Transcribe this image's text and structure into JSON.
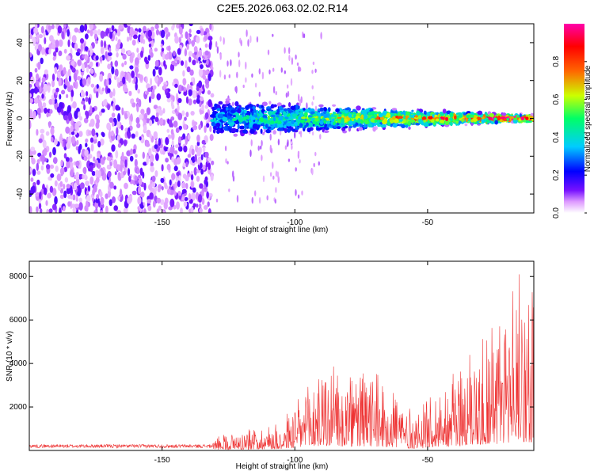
{
  "title": "C2E5.2026.063.02.02.R14",
  "colors": {
    "snr_line": "#ee3333",
    "axis": "#000000",
    "spectrogram_cmap": [
      "#ffffff",
      "#cc88ff",
      "#7711ff",
      "#0000ff",
      "#00ccff",
      "#00ff66",
      "#ccff00",
      "#ff6600",
      "#ff0000",
      "#ff00aa"
    ]
  },
  "chart_data": [
    {
      "type": "heatmap",
      "name": "spectrogram",
      "xlabel": "Height of straight line (km)",
      "ylabel": "Frequency (Hz)",
      "xlim": [
        -200,
        -10
      ],
      "ylim": [
        -50,
        50
      ],
      "xticks": [
        -150,
        -100,
        -50
      ],
      "yticks": [
        -40,
        -20,
        0,
        20,
        40
      ],
      "colorbar": {
        "label": "Normalized spectral amplitude",
        "range": [
          0,
          1
        ],
        "ticks": [
          "0.0",
          "0.2",
          "0.4",
          "0.6",
          "0.8"
        ]
      },
      "regions": [
        {
          "x_range": [
            -200,
            -131
          ],
          "description": "broadband noise",
          "freq_spread": 50,
          "amplitude": 0.2
        },
        {
          "x_range": [
            -131,
            -10
          ],
          "description": "signal band near 0 Hz narrowing with height",
          "freq_spread_start": 12,
          "freq_spread_end": 2,
          "amplitude_start": 0.3,
          "amplitude_end": 0.95
        }
      ]
    },
    {
      "type": "line",
      "name": "snr",
      "xlabel": "Height of straight line (km)",
      "ylabel": "SNR (10 * v/v)",
      "xlim": [
        -200,
        -10
      ],
      "ylim": [
        0,
        8700
      ],
      "xticks": [
        -150,
        -100,
        -50
      ],
      "yticks": [
        2000,
        4000,
        6000,
        8000
      ],
      "envelope_x": [
        -200,
        -131,
        -130,
        -120,
        -105,
        -92,
        -88,
        -80,
        -70,
        -60,
        -55,
        -48,
        -38,
        -30,
        -22,
        -15,
        -12,
        -10
      ],
      "envelope_y": [
        250,
        250,
        700,
        900,
        1300,
        3500,
        3700,
        3300,
        3600,
        2600,
        1600,
        2700,
        3800,
        5300,
        6200,
        8500,
        7200,
        8400
      ]
    }
  ]
}
